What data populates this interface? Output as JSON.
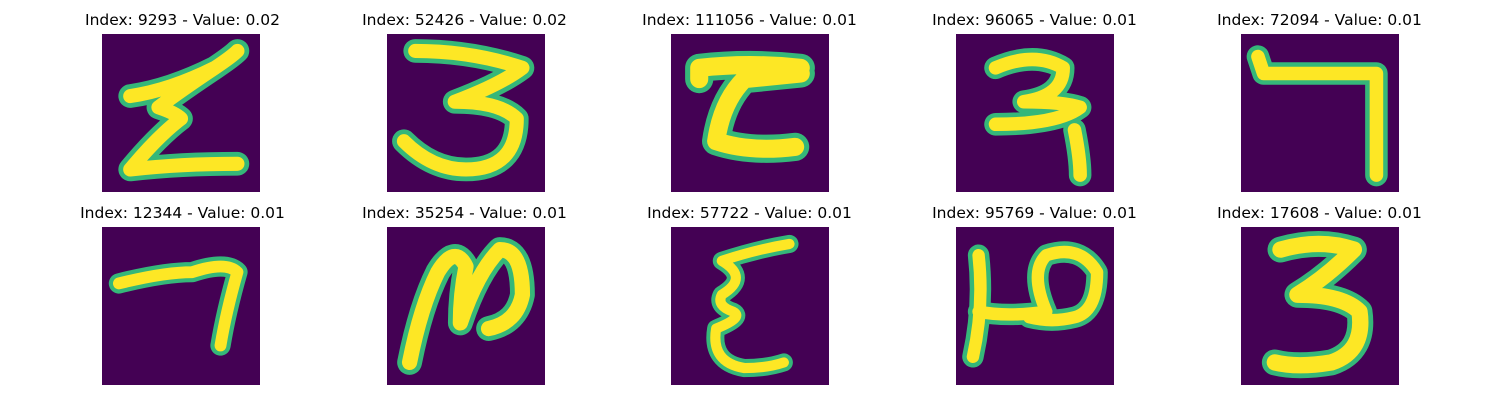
{
  "colors": {
    "background": "#440154",
    "stroke_edge": "#35b779",
    "stroke_core": "#fde725"
  },
  "panels": [
    {
      "title": "Index: 9293 - Value: 0.02",
      "glyph": "digit-3-like"
    },
    {
      "title": "Index: 52426 - Value: 0.02",
      "glyph": "digit-3"
    },
    {
      "title": "Index: 111056 - Value: 0.01",
      "glyph": "z-shape"
    },
    {
      "title": "Index: 96065 - Value: 0.01",
      "glyph": "hook-2"
    },
    {
      "title": "Index: 72094 - Value: 0.01",
      "glyph": "digit-7"
    },
    {
      "title": "Index: 12344 - Value: 0.01",
      "glyph": "digit-7"
    },
    {
      "title": "Index: 35254 - Value: 0.01",
      "glyph": "digit-2-loop"
    },
    {
      "title": "Index: 57722 - Value: 0.01",
      "glyph": "digit-3-thin"
    },
    {
      "title": "Index: 95769 - Value: 0.01",
      "glyph": "digit-2-hook"
    },
    {
      "title": "Index: 17608 - Value: 0.01",
      "glyph": "digit-3"
    }
  ]
}
